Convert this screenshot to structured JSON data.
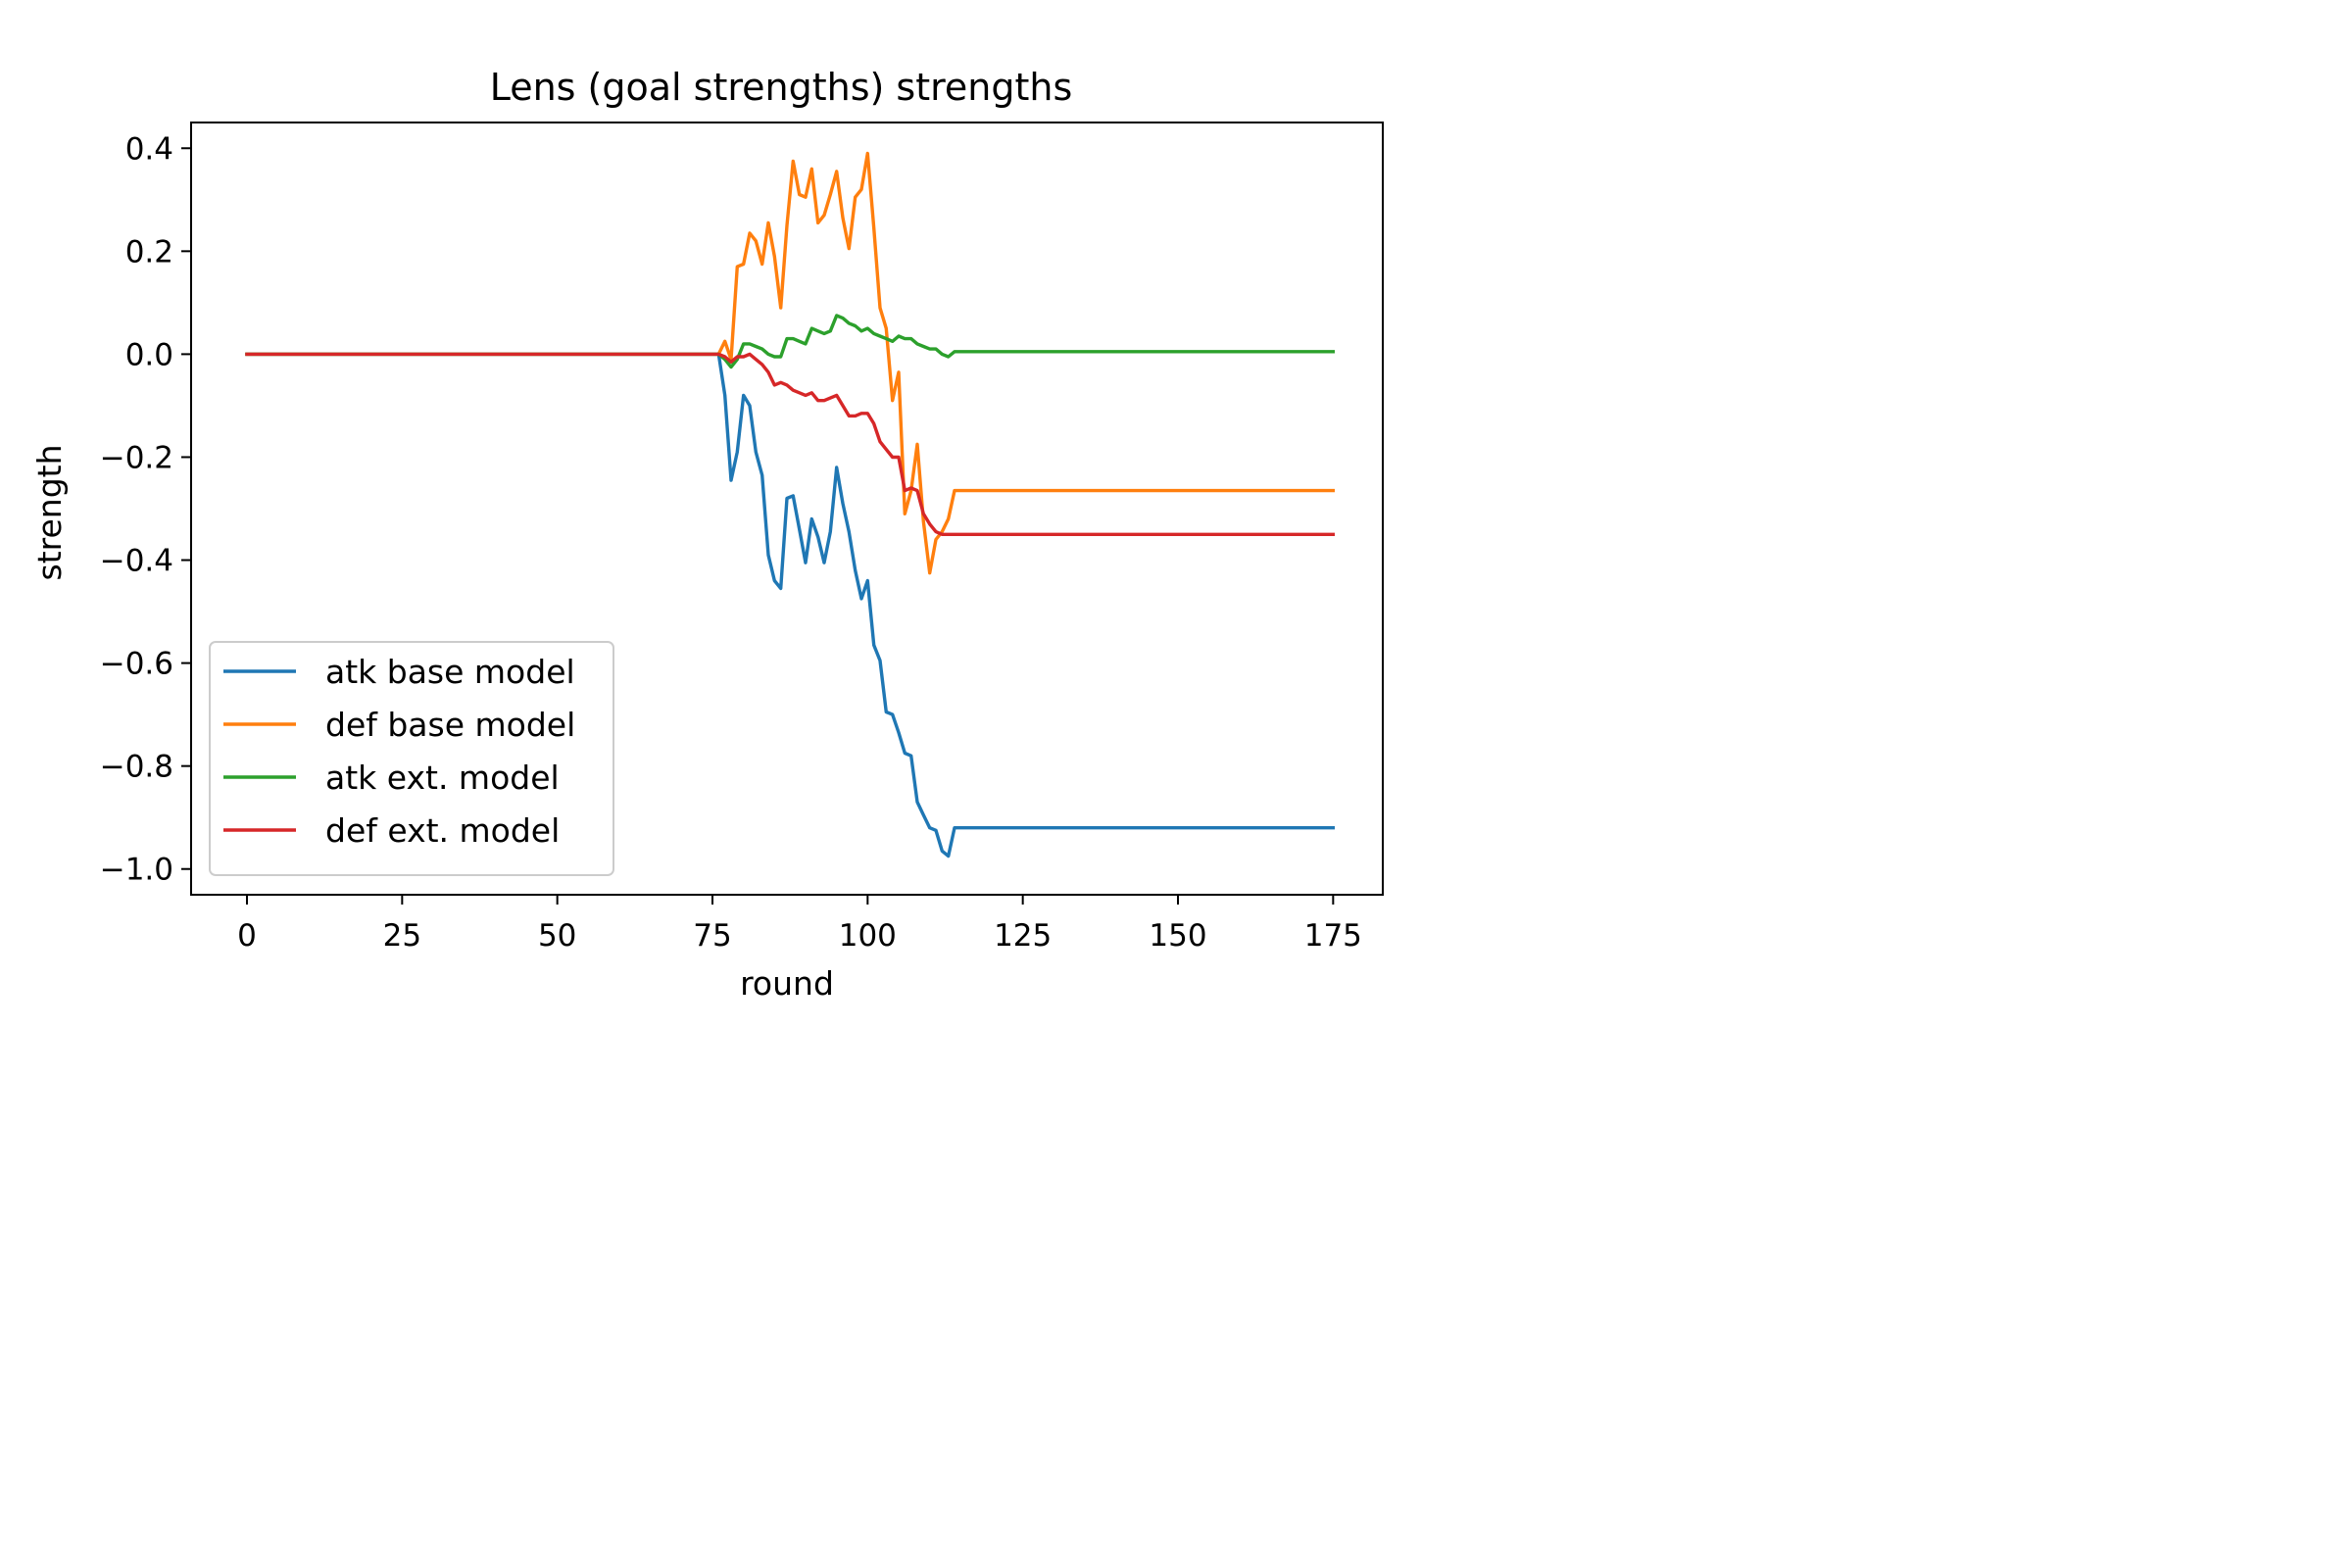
{
  "chart_data": {
    "type": "line",
    "title": "Lens (goal strengths) strengths",
    "xlabel": "round",
    "ylabel": "strength",
    "xlim": [
      -9,
      183
    ],
    "ylim": [
      -1.05,
      0.45
    ],
    "xticks": [
      0,
      25,
      50,
      75,
      100,
      125,
      150,
      175
    ],
    "xtick_labels": [
      "0",
      "25",
      "50",
      "75",
      "100",
      "125",
      "150",
      "175"
    ],
    "yticks": [
      0.4,
      0.2,
      0.0,
      -0.2,
      -0.4,
      -0.6,
      -0.8,
      -1.0
    ],
    "ytick_labels": [
      "0.4",
      "0.2",
      "0.0",
      "−0.2",
      "−0.4",
      "−0.6",
      "−0.8",
      "−1.0"
    ],
    "grid": false,
    "legend": "lower-left",
    "series": [
      {
        "name": "atk base model",
        "color": "#1f77b4",
        "points": [
          [
            0,
            0
          ],
          [
            76,
            0
          ],
          [
            77,
            -0.08
          ],
          [
            78,
            -0.245
          ],
          [
            79,
            -0.19
          ],
          [
            80,
            -0.08
          ],
          [
            81,
            -0.1
          ],
          [
            82,
            -0.19
          ],
          [
            83,
            -0.235
          ],
          [
            84,
            -0.39
          ],
          [
            85,
            -0.44
          ],
          [
            86,
            -0.455
          ],
          [
            87,
            -0.28
          ],
          [
            88,
            -0.275
          ],
          [
            89,
            -0.34
          ],
          [
            90,
            -0.405
          ],
          [
            91,
            -0.32
          ],
          [
            92,
            -0.355
          ],
          [
            93,
            -0.405
          ],
          [
            94,
            -0.345
          ],
          [
            95,
            -0.22
          ],
          [
            96,
            -0.29
          ],
          [
            97,
            -0.345
          ],
          [
            98,
            -0.42
          ],
          [
            99,
            -0.475
          ],
          [
            100,
            -0.44
          ],
          [
            101,
            -0.565
          ],
          [
            102,
            -0.595
          ],
          [
            103,
            -0.695
          ],
          [
            104,
            -0.7
          ],
          [
            105,
            -0.735
          ],
          [
            106,
            -0.775
          ],
          [
            107,
            -0.78
          ],
          [
            108,
            -0.87
          ],
          [
            109,
            -0.895
          ],
          [
            110,
            -0.92
          ],
          [
            111,
            -0.925
          ],
          [
            112,
            -0.965
          ],
          [
            113,
            -0.975
          ],
          [
            114,
            -0.92
          ],
          [
            175,
            -0.92
          ]
        ]
      },
      {
        "name": "def base model",
        "color": "#ff7f0e",
        "points": [
          [
            0,
            0
          ],
          [
            76,
            0
          ],
          [
            77,
            0.025
          ],
          [
            78,
            -0.01
          ],
          [
            79,
            0.17
          ],
          [
            80,
            0.175
          ],
          [
            81,
            0.235
          ],
          [
            82,
            0.22
          ],
          [
            83,
            0.175
          ],
          [
            84,
            0.255
          ],
          [
            85,
            0.19
          ],
          [
            86,
            0.09
          ],
          [
            87,
            0.25
          ],
          [
            88,
            0.375
          ],
          [
            89,
            0.31
          ],
          [
            90,
            0.305
          ],
          [
            91,
            0.36
          ],
          [
            92,
            0.255
          ],
          [
            93,
            0.27
          ],
          [
            94,
            0.31
          ],
          [
            95,
            0.355
          ],
          [
            96,
            0.265
          ],
          [
            97,
            0.205
          ],
          [
            98,
            0.305
          ],
          [
            99,
            0.32
          ],
          [
            100,
            0.39
          ],
          [
            101,
            0.245
          ],
          [
            102,
            0.09
          ],
          [
            103,
            0.05
          ],
          [
            104,
            -0.09
          ],
          [
            105,
            -0.035
          ],
          [
            106,
            -0.31
          ],
          [
            107,
            -0.265
          ],
          [
            108,
            -0.175
          ],
          [
            109,
            -0.325
          ],
          [
            110,
            -0.425
          ],
          [
            111,
            -0.36
          ],
          [
            112,
            -0.345
          ],
          [
            113,
            -0.32
          ],
          [
            114,
            -0.265
          ],
          [
            175,
            -0.265
          ]
        ]
      },
      {
        "name": "atk ext. model",
        "color": "#2ca02c",
        "points": [
          [
            0,
            0
          ],
          [
            76,
            0
          ],
          [
            77,
            -0.01
          ],
          [
            78,
            -0.025
          ],
          [
            79,
            -0.01
          ],
          [
            80,
            0.02
          ],
          [
            81,
            0.02
          ],
          [
            82,
            0.015
          ],
          [
            83,
            0.01
          ],
          [
            84,
            0.0
          ],
          [
            85,
            -0.005
          ],
          [
            86,
            -0.005
          ],
          [
            87,
            0.03
          ],
          [
            88,
            0.03
          ],
          [
            89,
            0.025
          ],
          [
            90,
            0.02
          ],
          [
            91,
            0.05
          ],
          [
            92,
            0.045
          ],
          [
            93,
            0.04
          ],
          [
            94,
            0.045
          ],
          [
            95,
            0.075
          ],
          [
            96,
            0.07
          ],
          [
            97,
            0.06
          ],
          [
            98,
            0.055
          ],
          [
            99,
            0.045
          ],
          [
            100,
            0.05
          ],
          [
            101,
            0.04
          ],
          [
            102,
            0.035
          ],
          [
            103,
            0.03
          ],
          [
            104,
            0.025
          ],
          [
            105,
            0.035
          ],
          [
            106,
            0.03
          ],
          [
            107,
            0.03
          ],
          [
            108,
            0.02
          ],
          [
            109,
            0.015
          ],
          [
            110,
            0.01
          ],
          [
            111,
            0.01
          ],
          [
            112,
            0.0
          ],
          [
            113,
            -0.005
          ],
          [
            114,
            0.005
          ],
          [
            175,
            0.005
          ]
        ]
      },
      {
        "name": "def ext. model",
        "color": "#d62728",
        "points": [
          [
            0,
            0
          ],
          [
            76,
            0
          ],
          [
            77,
            -0.005
          ],
          [
            78,
            -0.015
          ],
          [
            79,
            -0.005
          ],
          [
            80,
            -0.005
          ],
          [
            81,
            0.0
          ],
          [
            82,
            -0.01
          ],
          [
            83,
            -0.02
          ],
          [
            84,
            -0.035
          ],
          [
            85,
            -0.06
          ],
          [
            86,
            -0.055
          ],
          [
            87,
            -0.06
          ],
          [
            88,
            -0.07
          ],
          [
            89,
            -0.075
          ],
          [
            90,
            -0.08
          ],
          [
            91,
            -0.075
          ],
          [
            92,
            -0.09
          ],
          [
            93,
            -0.09
          ],
          [
            94,
            -0.085
          ],
          [
            95,
            -0.08
          ],
          [
            96,
            -0.1
          ],
          [
            97,
            -0.12
          ],
          [
            98,
            -0.12
          ],
          [
            99,
            -0.115
          ],
          [
            100,
            -0.115
          ],
          [
            101,
            -0.135
          ],
          [
            102,
            -0.17
          ],
          [
            103,
            -0.185
          ],
          [
            104,
            -0.2
          ],
          [
            105,
            -0.2
          ],
          [
            106,
            -0.265
          ],
          [
            107,
            -0.26
          ],
          [
            108,
            -0.265
          ],
          [
            109,
            -0.31
          ],
          [
            110,
            -0.33
          ],
          [
            111,
            -0.345
          ],
          [
            112,
            -0.35
          ],
          [
            113,
            -0.35
          ],
          [
            114,
            -0.35
          ],
          [
            175,
            -0.35
          ]
        ]
      }
    ]
  }
}
